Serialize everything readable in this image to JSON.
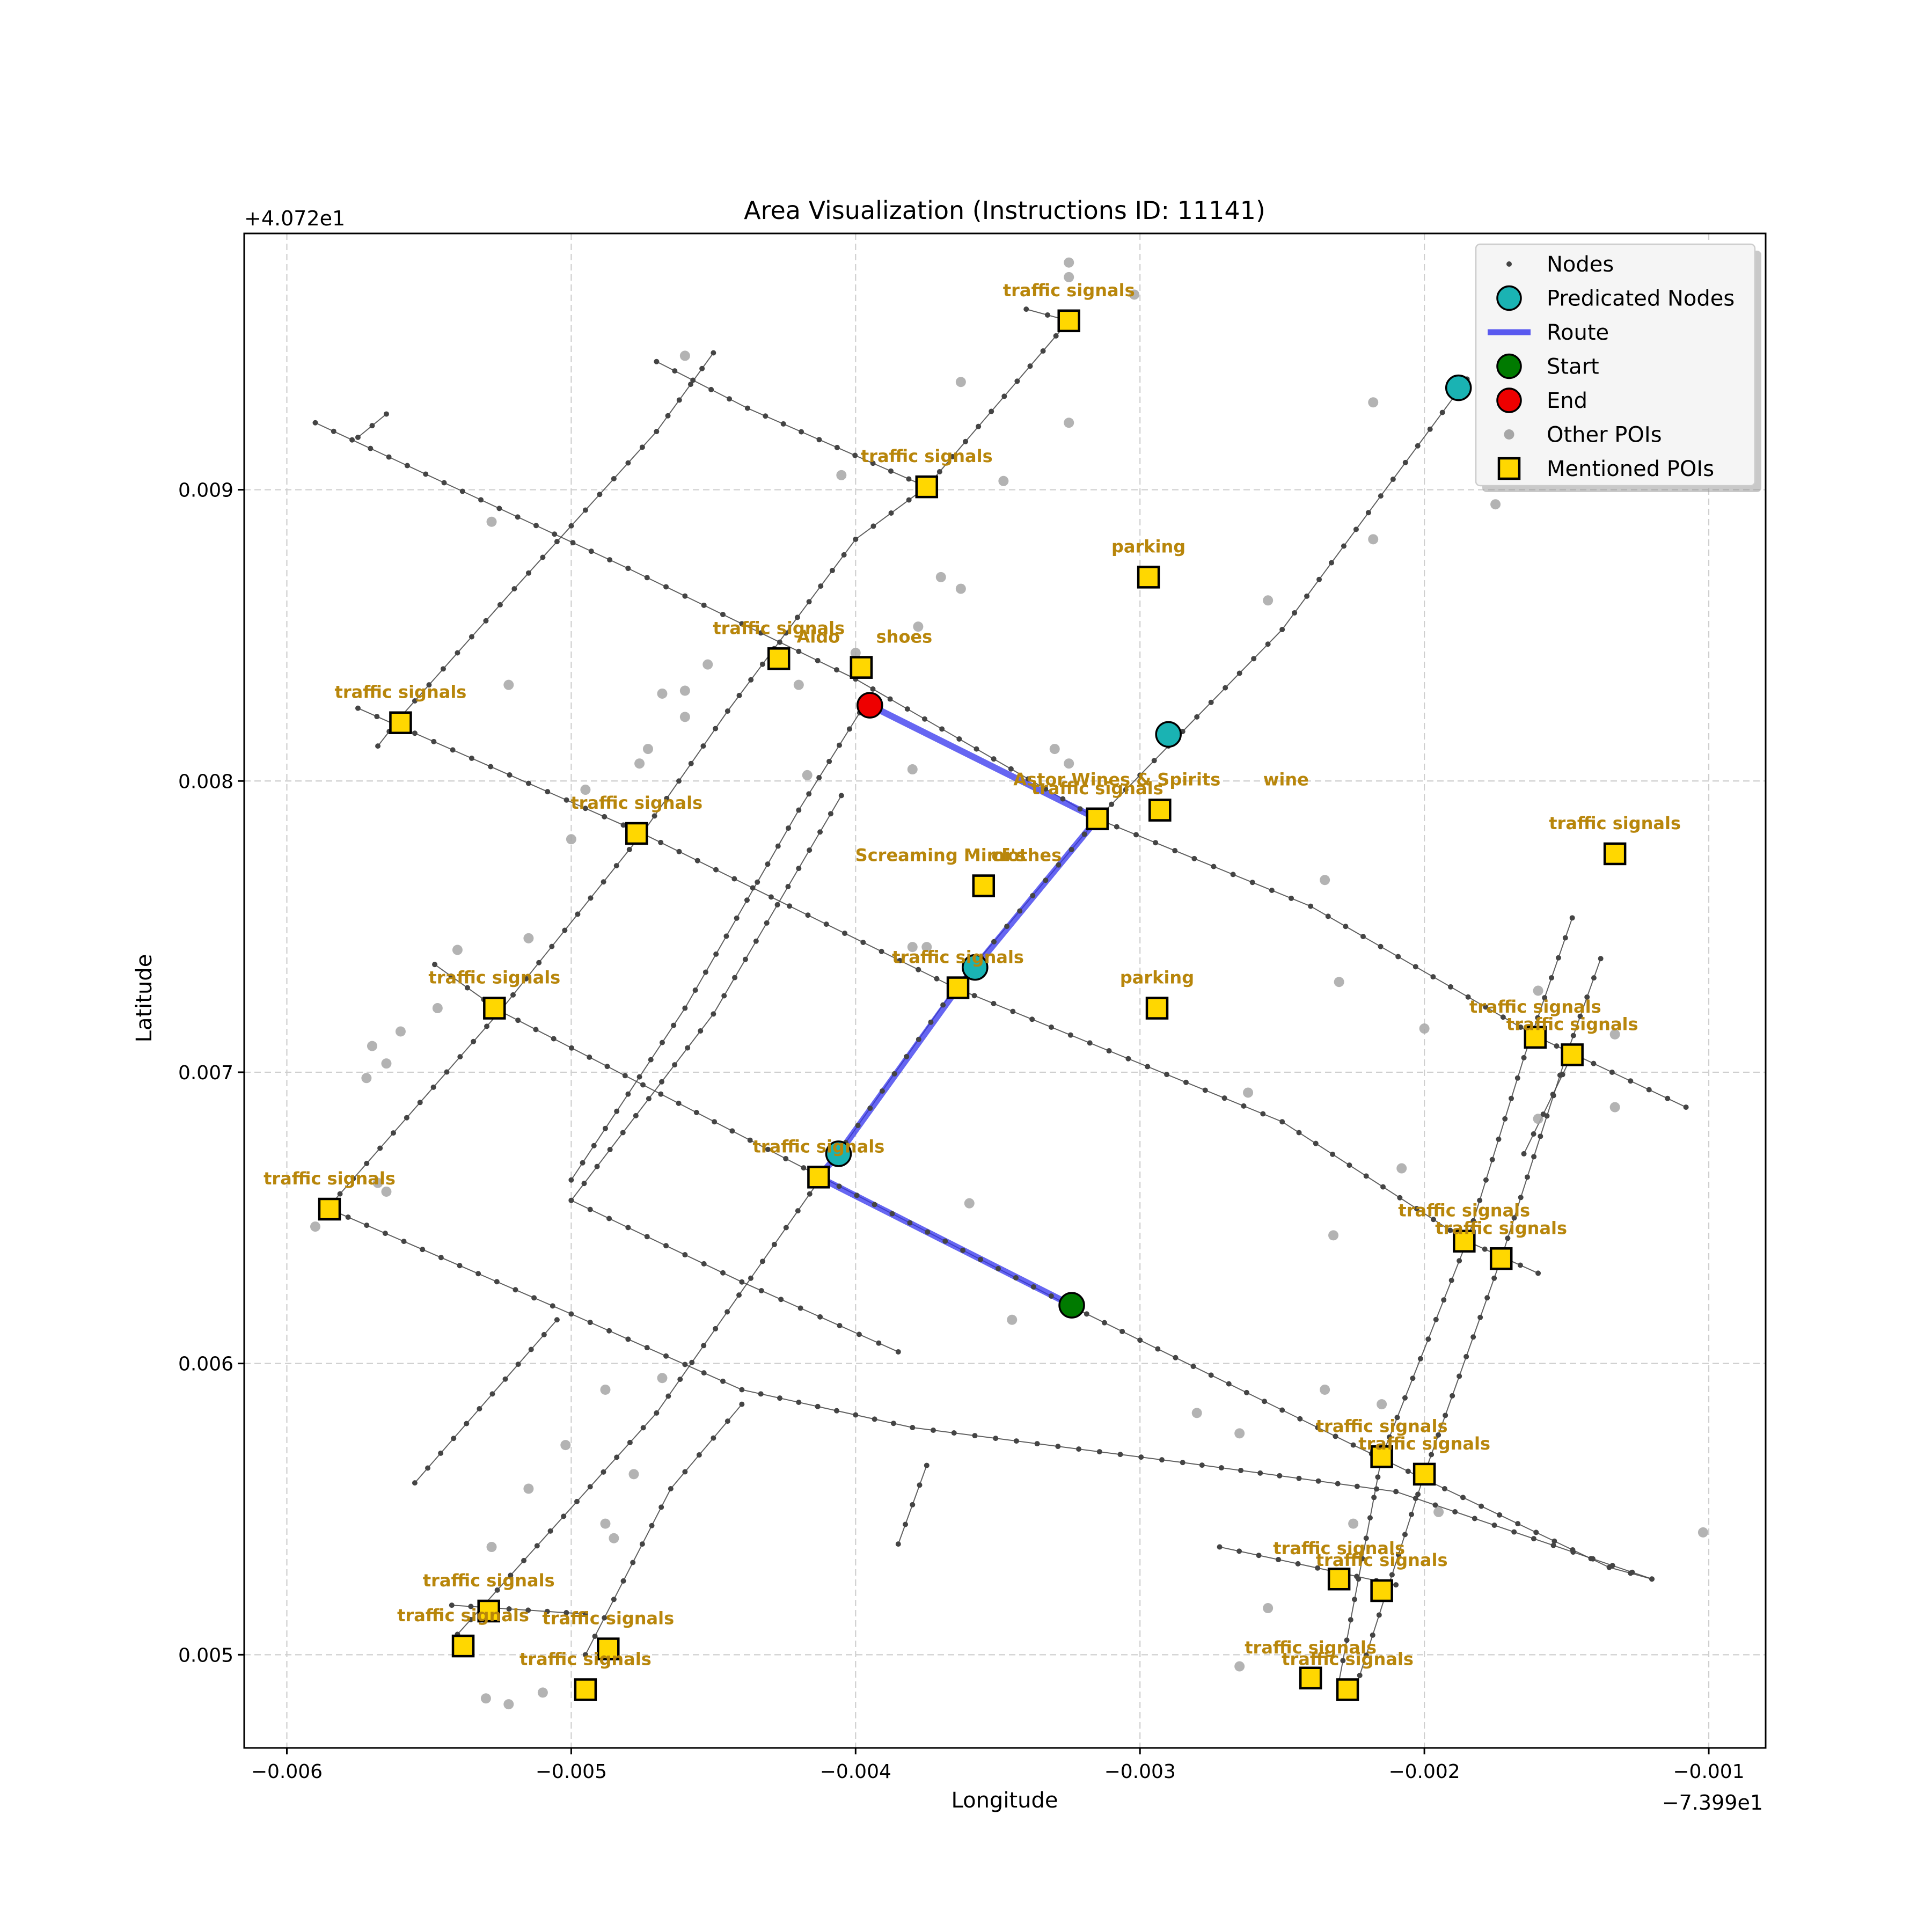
{
  "figure": {
    "title": "Area Visualization (Instructions ID: 11141)",
    "xlabel": "Longitude",
    "ylabel": "Latitude",
    "x_offset_text": "−7.399e1",
    "y_offset_text": "+4.072e1"
  },
  "colors": {
    "node": "#444444",
    "street": "#444444",
    "route": "#3333ee",
    "predicted": "#1ab3b3",
    "start": "#007a00",
    "end": "#ee0000",
    "other_poi": "#a6a6a6",
    "mentioned_poi": "#ffd700",
    "poi_label": "#b8860b"
  },
  "legend": {
    "position": "top-right",
    "items": [
      {
        "label": "Nodes",
        "kind": "node"
      },
      {
        "label": "Predicated Nodes",
        "kind": "predicted"
      },
      {
        "label": "Route",
        "kind": "route"
      },
      {
        "label": "Start",
        "kind": "start"
      },
      {
        "label": "End",
        "kind": "end"
      },
      {
        "label": "Other POIs",
        "kind": "other"
      },
      {
        "label": "Mentioned POIs",
        "kind": "mentioned"
      }
    ]
  },
  "chart_data": {
    "type": "scatter",
    "title": "Area Visualization (Instructions ID: 11141)",
    "xlabel": "Longitude",
    "ylabel": "Latitude",
    "xlim": [
      -0.00615,
      -0.0008
    ],
    "ylim": [
      0.00468,
      0.00988
    ],
    "x_offset": -73.99,
    "y_offset": 40.72,
    "grid": true,
    "x_ticks": [
      {
        "value": -0.006,
        "label": "−0.006"
      },
      {
        "value": -0.005,
        "label": "−0.005"
      },
      {
        "value": -0.004,
        "label": "−0.004"
      },
      {
        "value": -0.003,
        "label": "−0.003"
      },
      {
        "value": -0.002,
        "label": "−0.002"
      },
      {
        "value": -0.001,
        "label": "−0.001"
      }
    ],
    "y_ticks": [
      {
        "value": 0.005,
        "label": "0.005"
      },
      {
        "value": 0.006,
        "label": "0.006"
      },
      {
        "value": 0.007,
        "label": "0.007"
      },
      {
        "value": 0.008,
        "label": "0.008"
      },
      {
        "value": 0.009,
        "label": "0.009"
      }
    ],
    "streets": [
      [
        [
          -0.0059,
          0.00923
        ],
        [
          -0.0048,
          0.00873
        ],
        [
          -0.004,
          0.00835
        ],
        [
          -0.00315,
          0.00787
        ],
        [
          -0.0024,
          0.00757
        ],
        [
          -0.0016,
          0.00712
        ],
        [
          -0.00108,
          0.00688
        ]
      ],
      [
        [
          -0.00575,
          0.00825
        ],
        [
          -0.00475,
          0.00782
        ],
        [
          -0.00365,
          0.00729
        ],
        [
          -0.0025,
          0.00683
        ],
        [
          -0.00185,
          0.00642
        ],
        [
          -0.0016,
          0.00631
        ]
      ],
      [
        [
          -0.00548,
          0.00737
        ],
        [
          -0.00525,
          0.00721
        ],
        [
          -0.00412,
          0.00664
        ],
        [
          -0.00325,
          0.0062
        ],
        [
          -0.00225,
          0.00572
        ],
        [
          -0.00135,
          0.0053
        ],
        [
          -0.0012,
          0.00526
        ]
      ],
      [
        [
          -0.00585,
          0.00653
        ],
        [
          -0.005,
          0.00617
        ],
        [
          -0.0044,
          0.00591
        ],
        [
          -0.0038,
          0.00578
        ],
        [
          -0.00285,
          0.00566
        ],
        [
          -0.0021,
          0.00556
        ],
        [
          -0.0012,
          0.00526
        ]
      ],
      [
        [
          -0.005,
          0.00656
        ],
        [
          -0.0044,
          0.00628
        ],
        [
          -0.00385,
          0.00604
        ]
      ],
      [
        [
          -0.00542,
          0.00517
        ],
        [
          -0.00495,
          0.00514
        ]
      ],
      [
        [
          -0.00272,
          0.00537
        ],
        [
          -0.0021,
          0.00524
        ]
      ],
      [
        [
          -0.0047,
          0.00944
        ],
        [
          -0.00438,
          0.00928
        ],
        [
          -0.00375,
          0.00901
        ]
      ],
      [
        [
          -0.0034,
          0.00962
        ],
        [
          -0.00325,
          0.00958
        ]
      ],
      [
        [
          -0.00586,
          0.00653
        ],
        [
          -0.00525,
          0.00721
        ],
        [
          -0.00475,
          0.00782
        ],
        [
          -0.00445,
          0.00824
        ],
        [
          -0.004,
          0.00883
        ],
        [
          -0.00375,
          0.00901
        ],
        [
          -0.00325,
          0.00958
        ]
      ],
      [
        [
          -0.00555,
          0.00559
        ],
        [
          -0.00505,
          0.00615
        ]
      ],
      [
        [
          -0.0054,
          0.00507
        ],
        [
          -0.0047,
          0.00583
        ],
        [
          -0.00412,
          0.00664
        ],
        [
          -0.00365,
          0.00729
        ],
        [
          -0.00315,
          0.00787
        ],
        [
          -0.0025,
          0.00852
        ],
        [
          -0.00185,
          0.00938
        ]
      ],
      [
        [
          -0.00495,
          0.005
        ],
        [
          -0.00465,
          0.00557
        ],
        [
          -0.0044,
          0.00586
        ]
      ],
      [
        [
          -0.005,
          0.00663
        ],
        [
          -0.0046,
          0.00722
        ],
        [
          -0.0042,
          0.0079
        ],
        [
          -0.00395,
          0.00829
        ]
      ],
      [
        [
          -0.005,
          0.00656
        ],
        [
          -0.0045,
          0.0072
        ],
        [
          -0.00405,
          0.00795
        ]
      ],
      [
        [
          -0.00385,
          0.00538
        ],
        [
          -0.00375,
          0.00565
        ]
      ],
      [
        [
          -0.0023,
          0.00491
        ],
        [
          -0.00215,
          0.00568
        ],
        [
          -0.00185,
          0.00642
        ],
        [
          -0.00165,
          0.00705
        ],
        [
          -0.00148,
          0.00753
        ]
      ],
      [
        [
          -0.00225,
          0.00486
        ],
        [
          -0.002,
          0.00562
        ],
        [
          -0.00173,
          0.00636
        ],
        [
          -0.0015,
          0.00706
        ],
        [
          -0.00138,
          0.00739
        ]
      ],
      [
        [
          -0.00568,
          0.00812
        ],
        [
          -0.0056,
          0.00822
        ],
        [
          -0.0052,
          0.00866
        ],
        [
          -0.0047,
          0.0092
        ],
        [
          -0.0045,
          0.00947
        ]
      ],
      [
        [
          -0.00575,
          0.00918
        ],
        [
          -0.00565,
          0.00926
        ]
      ],
      [
        [
          -0.00165,
          0.00672
        ],
        [
          -0.00148,
          0.00706
        ]
      ]
    ],
    "route": [
      [
        -0.00324,
        0.0062
      ],
      [
        -0.00413,
        0.00664
      ],
      [
        -0.00406,
        0.00672
      ],
      [
        -0.00364,
        0.00729
      ],
      [
        -0.00358,
        0.00736
      ],
      [
        -0.00315,
        0.00787
      ],
      [
        -0.00395,
        0.00826
      ]
    ],
    "predicted_nodes": [
      [
        -0.00406,
        0.00672
      ],
      [
        -0.00358,
        0.00736
      ],
      [
        -0.0029,
        0.00816
      ],
      [
        -0.00188,
        0.00935
      ]
    ],
    "start": [
      -0.00324,
      0.0062
    ],
    "end": [
      -0.00395,
      0.00826
    ],
    "other_pois": [
      [
        -0.00325,
        0.00978
      ],
      [
        -0.00325,
        0.00973
      ],
      [
        -0.00302,
        0.00967
      ],
      [
        -0.0046,
        0.00946
      ],
      [
        -0.00363,
        0.00937
      ],
      [
        -0.00325,
        0.00923
      ],
      [
        -0.00218,
        0.0093
      ],
      [
        -0.00405,
        0.00905
      ],
      [
        -0.00348,
        0.00903
      ],
      [
        -0.00528,
        0.00889
      ],
      [
        -0.00175,
        0.00895
      ],
      [
        -0.00218,
        0.00883
      ],
      [
        -0.00363,
        0.00866
      ],
      [
        -0.0037,
        0.0087
      ],
      [
        -0.00255,
        0.00862
      ],
      [
        -0.00378,
        0.00853
      ],
      [
        -0.00452,
        0.0084
      ],
      [
        -0.0033,
        0.00811
      ],
      [
        -0.00468,
        0.0083
      ],
      [
        -0.0046,
        0.00822
      ],
      [
        -0.0046,
        0.00831
      ],
      [
        -0.0042,
        0.00833
      ],
      [
        -0.004,
        0.00844
      ],
      [
        -0.00473,
        0.00811
      ],
      [
        -0.00476,
        0.00806
      ],
      [
        -0.00522,
        0.00833
      ],
      [
        -0.00417,
        0.00802
      ],
      [
        -0.0038,
        0.00804
      ],
      [
        -0.00325,
        0.00806
      ],
      [
        -0.00495,
        0.00797
      ],
      [
        -0.005,
        0.0078
      ],
      [
        -0.00235,
        0.00766
      ],
      [
        -0.0038,
        0.00743
      ],
      [
        -0.00375,
        0.00743
      ],
      [
        -0.00515,
        0.00746
      ],
      [
        -0.0054,
        0.00742
      ],
      [
        -0.00547,
        0.00722
      ],
      [
        -0.0056,
        0.00714
      ],
      [
        -0.0057,
        0.00709
      ],
      [
        -0.00565,
        0.00703
      ],
      [
        -0.00572,
        0.00698
      ],
      [
        -0.0023,
        0.00731
      ],
      [
        -0.0016,
        0.00728
      ],
      [
        -0.0016,
        0.00684
      ],
      [
        -0.002,
        0.00715
      ],
      [
        -0.00133,
        0.00713
      ],
      [
        -0.00133,
        0.00688
      ],
      [
        -0.00262,
        0.00693
      ],
      [
        -0.00208,
        0.00667
      ],
      [
        -0.0036,
        0.00655
      ],
      [
        -0.00232,
        0.00644
      ],
      [
        -0.00568,
        0.00662
      ],
      [
        -0.00565,
        0.00659
      ],
      [
        -0.0059,
        0.00647
      ],
      [
        -0.00345,
        0.00615
      ],
      [
        -0.00235,
        0.00591
      ],
      [
        -0.00215,
        0.00586
      ],
      [
        -0.0028,
        0.00583
      ],
      [
        -0.00265,
        0.00576
      ],
      [
        -0.00488,
        0.00591
      ],
      [
        -0.00502,
        0.00572
      ],
      [
        -0.00468,
        0.00595
      ],
      [
        -0.00515,
        0.00557
      ],
      [
        -0.00478,
        0.00562
      ],
      [
        -0.00488,
        0.00545
      ],
      [
        -0.00485,
        0.0054
      ],
      [
        -0.00195,
        0.00549
      ],
      [
        -0.00225,
        0.00545
      ],
      [
        -0.00528,
        0.00537
      ],
      [
        -0.00255,
        0.00516
      ],
      [
        -0.00265,
        0.00496
      ],
      [
        -0.0053,
        0.00485
      ],
      [
        -0.00522,
        0.00483
      ],
      [
        -0.0051,
        0.00487
      ],
      [
        -0.00102,
        0.00542
      ]
    ],
    "mentioned_pois": [
      {
        "name": "traffic signals",
        "x": -0.00325,
        "y": 0.00958
      },
      {
        "name": "traffic signals",
        "x": -0.00375,
        "y": 0.00901
      },
      {
        "name": "parking",
        "x": -0.00297,
        "y": 0.0087
      },
      {
        "name": "traffic signals",
        "x": -0.00427,
        "y": 0.00842
      },
      {
        "name": "Aldo",
        "x": -0.00398,
        "y": 0.00839
      },
      {
        "name": "shoes",
        "x": -0.00398,
        "y": 0.00839
      },
      {
        "name": "traffic signals",
        "x": -0.0056,
        "y": 0.0082
      },
      {
        "name": "traffic signals",
        "x": -0.00477,
        "y": 0.00782
      },
      {
        "name": "Astor Wines & Spirits",
        "x": -0.00293,
        "y": 0.0079
      },
      {
        "name": "wine",
        "x": -0.00293,
        "y": 0.0079
      },
      {
        "name": "traffic signals",
        "x": -0.00315,
        "y": 0.00787
      },
      {
        "name": "traffic signals",
        "x": -0.00133,
        "y": 0.00775
      },
      {
        "name": "Screaming Mimi's",
        "x": -0.00355,
        "y": 0.00764
      },
      {
        "name": "clothes",
        "x": -0.00355,
        "y": 0.00764
      },
      {
        "name": "traffic signals",
        "x": -0.00364,
        "y": 0.00729
      },
      {
        "name": "parking",
        "x": -0.00294,
        "y": 0.00722
      },
      {
        "name": "traffic signals",
        "x": -0.00527,
        "y": 0.00722
      },
      {
        "name": "traffic signals",
        "x": -0.00161,
        "y": 0.00712
      },
      {
        "name": "traffic signals",
        "x": -0.00148,
        "y": 0.00706
      },
      {
        "name": "traffic signals",
        "x": -0.00413,
        "y": 0.00664
      },
      {
        "name": "traffic signals",
        "x": -0.00585,
        "y": 0.00653
      },
      {
        "name": "traffic signals",
        "x": -0.00186,
        "y": 0.00642
      },
      {
        "name": "traffic signals",
        "x": -0.00173,
        "y": 0.00636
      },
      {
        "name": "traffic signals",
        "x": -0.00215,
        "y": 0.00568
      },
      {
        "name": "traffic signals",
        "x": -0.002,
        "y": 0.00562
      },
      {
        "name": "traffic signals",
        "x": -0.0023,
        "y": 0.00526
      },
      {
        "name": "traffic signals",
        "x": -0.00215,
        "y": 0.00522
      },
      {
        "name": "traffic signals",
        "x": -0.00529,
        "y": 0.00515
      },
      {
        "name": "traffic signals",
        "x": -0.00538,
        "y": 0.00503
      },
      {
        "name": "traffic signals",
        "x": -0.00487,
        "y": 0.00502
      },
      {
        "name": "traffic signals",
        "x": -0.00495,
        "y": 0.00488
      },
      {
        "name": "traffic signals",
        "x": -0.0024,
        "y": 0.00492
      },
      {
        "name": "traffic signals",
        "x": -0.00227,
        "y": 0.00488
      }
    ]
  }
}
